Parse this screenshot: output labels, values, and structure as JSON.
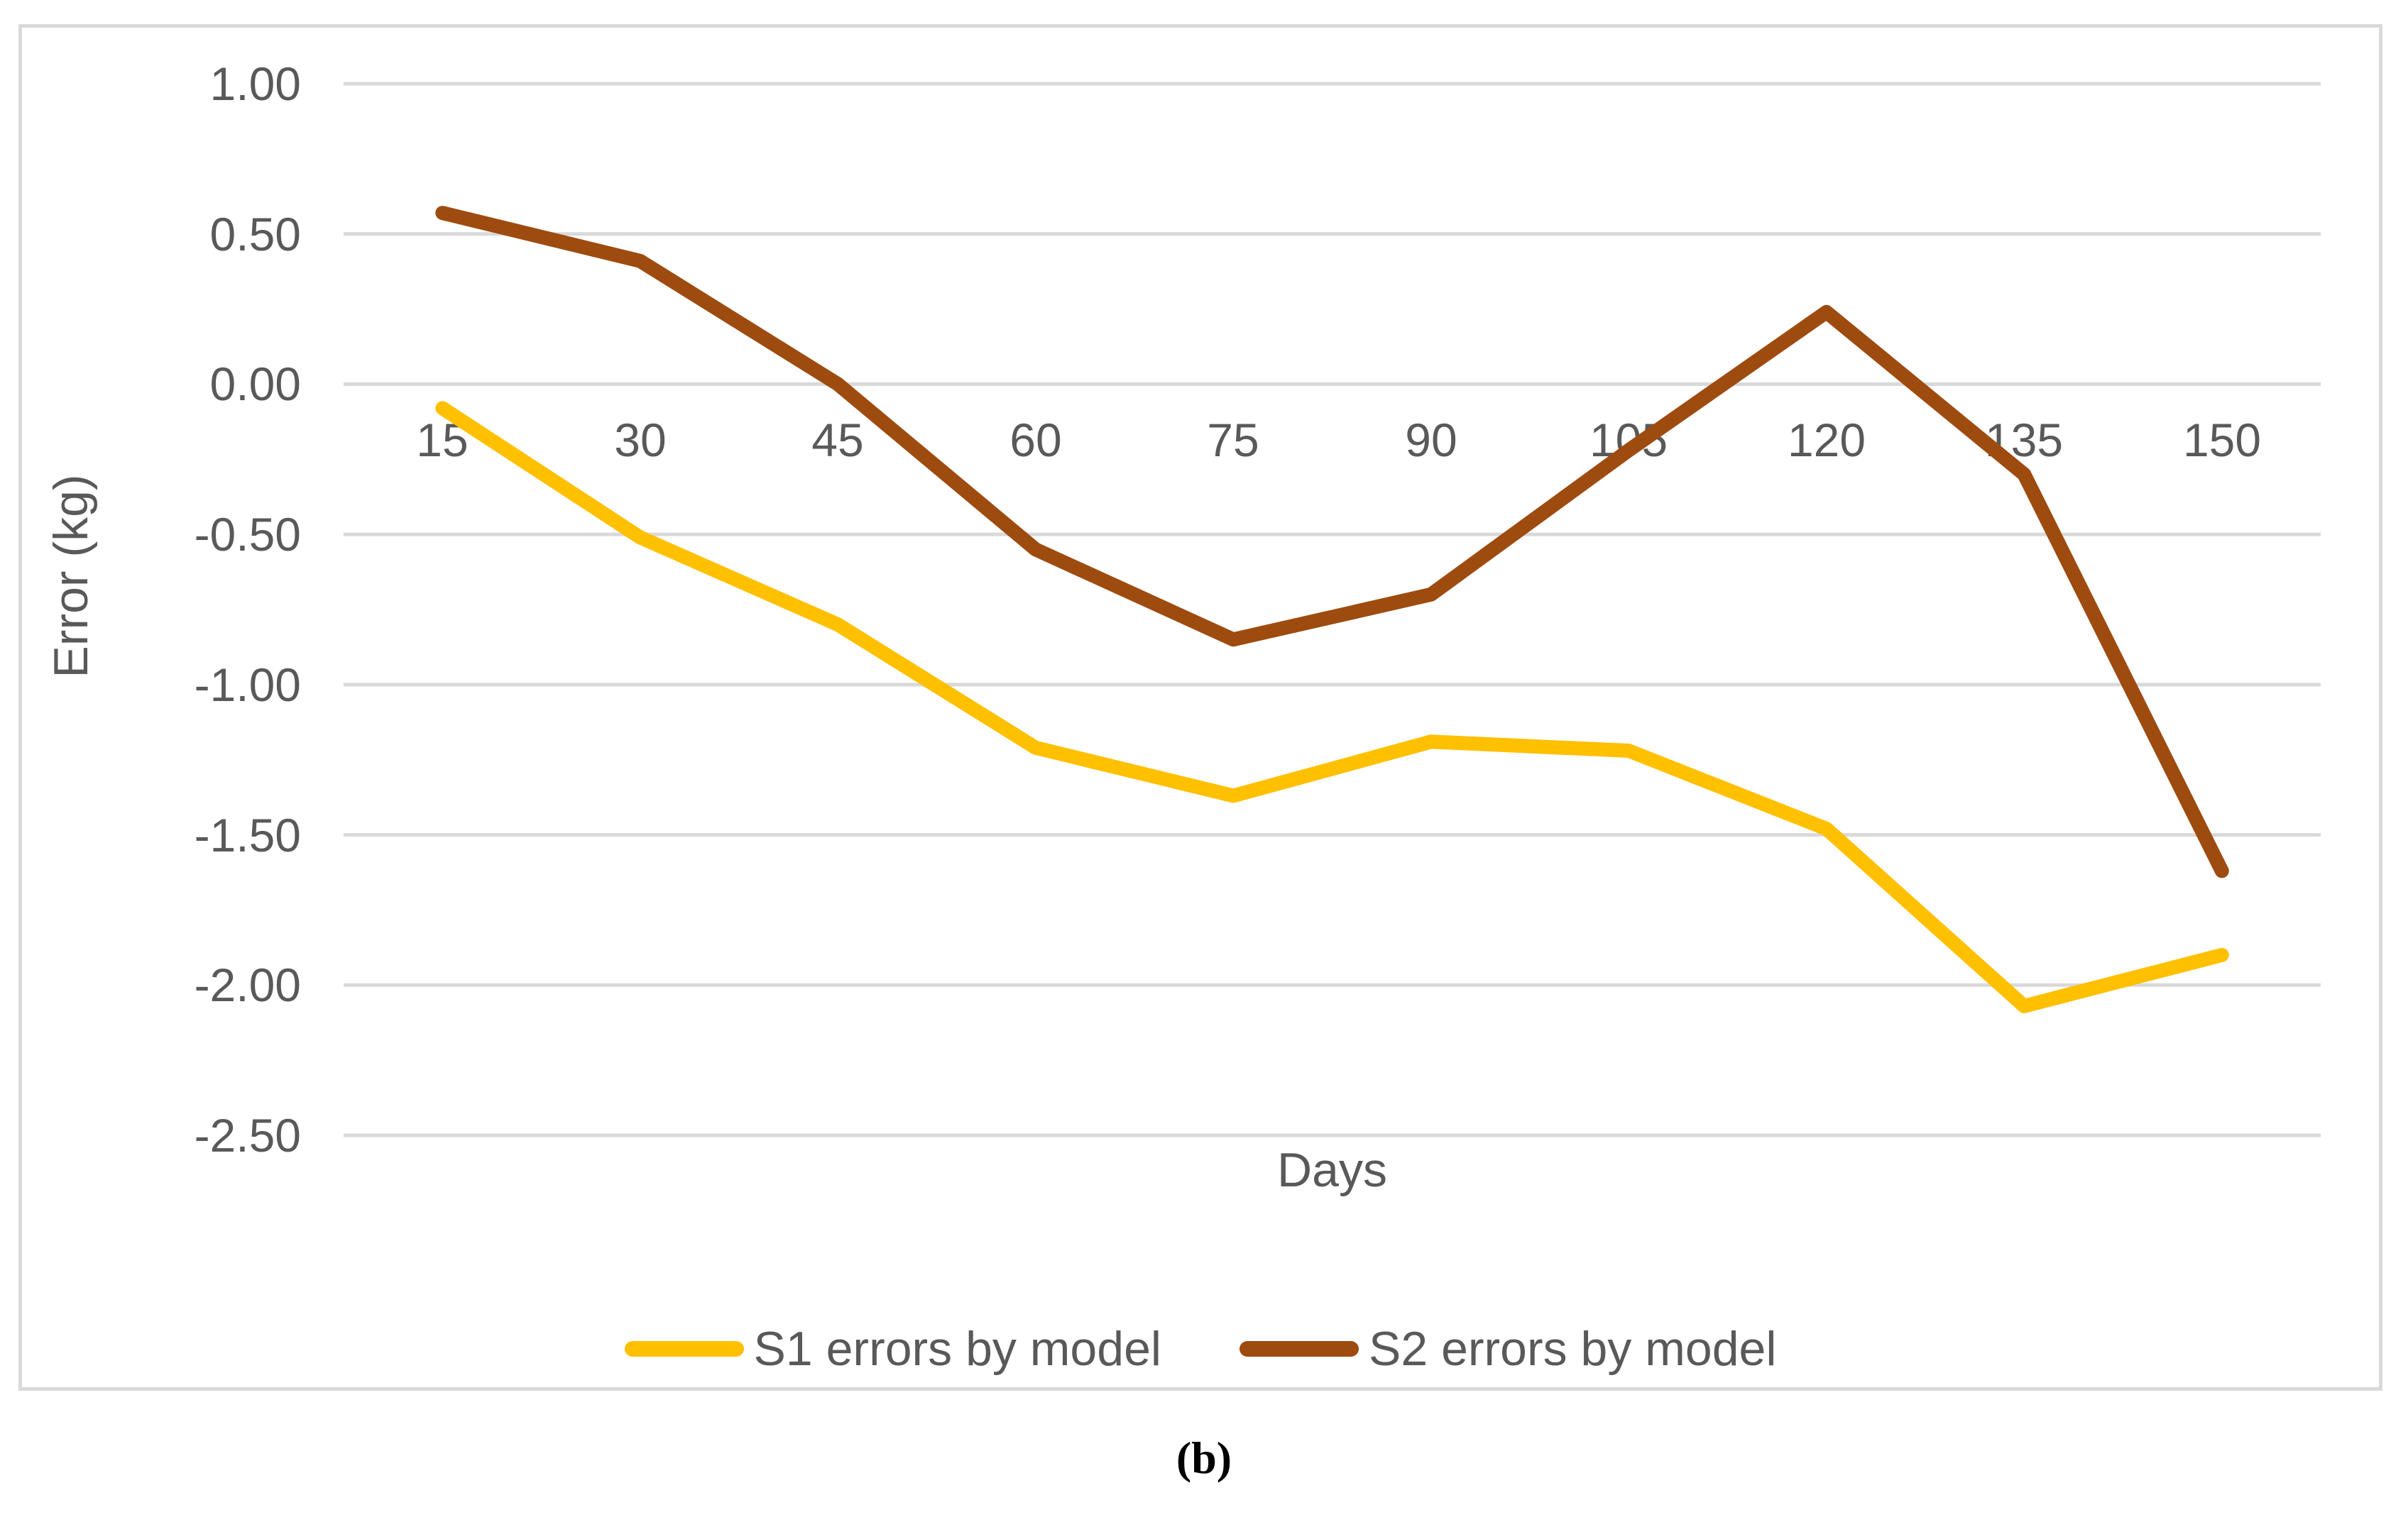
{
  "figure": {
    "caption": "(b)"
  },
  "chart_data": {
    "type": "line",
    "title": "",
    "xlabel": "Days",
    "ylabel": "Error (kg)",
    "x_categories": [
      "15",
      "30",
      "45",
      "60",
      "75",
      "90",
      "105",
      "120",
      "135",
      "150"
    ],
    "y_ticks": [
      "1.00",
      "0.50",
      "0.00",
      "-0.50",
      "-1.00",
      "-1.50",
      "-2.00",
      "-2.50"
    ],
    "y_tick_values": [
      1.0,
      0.5,
      0.0,
      -0.5,
      -1.0,
      -1.5,
      -2.0,
      -2.5
    ],
    "ylim": [
      -2.5,
      1.0
    ],
    "grid": "horizontal",
    "legend_position": "bottom",
    "series": [
      {
        "name": "S1 errors by model",
        "color": "#FFC000",
        "values": [
          -0.08,
          -0.51,
          -0.8,
          -1.21,
          -1.37,
          -1.19,
          -1.22,
          -1.48,
          -2.07,
          -1.9
        ]
      },
      {
        "name": "S2 errors by model",
        "color": "#9E4B10",
        "values": [
          0.57,
          0.41,
          0.0,
          -0.55,
          -0.85,
          -0.7,
          -0.22,
          0.24,
          -0.3,
          -1.62
        ]
      }
    ],
    "colors": {
      "grid": "#D9D9D9",
      "text": "#595959",
      "panel_border": "#D9D9D9",
      "background": "#FFFFFF"
    }
  }
}
